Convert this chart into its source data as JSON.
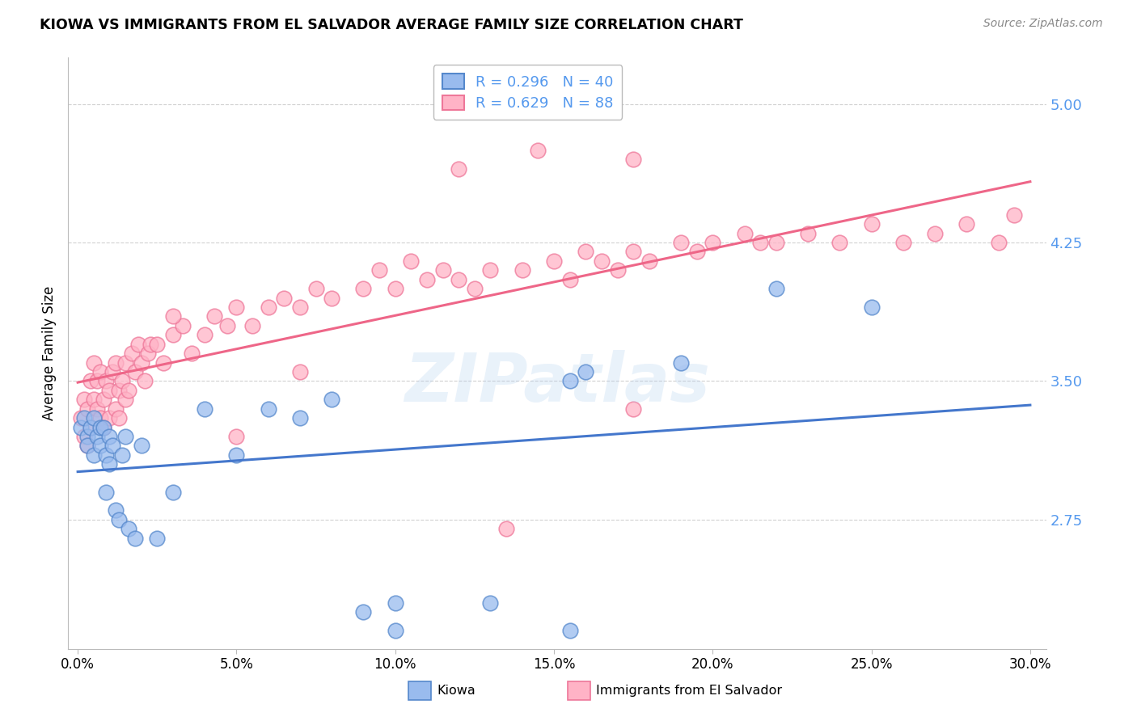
{
  "title": "KIOWA VS IMMIGRANTS FROM EL SALVADOR AVERAGE FAMILY SIZE CORRELATION CHART",
  "source": "Source: ZipAtlas.com",
  "ylabel": "Average Family Size",
  "legend_label_blue": "Kiowa",
  "legend_label_pink": "Immigrants from El Salvador",
  "legend_r_blue": "R = 0.296",
  "legend_n_blue": "N = 40",
  "legend_r_pink": "R = 0.629",
  "legend_n_pink": "N = 88",
  "xlim": [
    -0.003,
    0.305
  ],
  "ylim": [
    2.05,
    5.25
  ],
  "yticks": [
    2.75,
    3.5,
    4.25,
    5.0
  ],
  "xticks": [
    0.0,
    0.05,
    0.1,
    0.15,
    0.2,
    0.25,
    0.3
  ],
  "xtick_labels": [
    "0.0%",
    "5.0%",
    "10.0%",
    "15.0%",
    "20.0%",
    "25.0%",
    "30.0%"
  ],
  "color_blue_fill": "#99BBEE",
  "color_pink_fill": "#FFB3C6",
  "color_blue_edge": "#5588CC",
  "color_pink_edge": "#EE7799",
  "color_blue_line": "#4477CC",
  "color_pink_line": "#EE6688",
  "color_ytick": "#5599EE",
  "background_color": "#FFFFFF",
  "blue_x": [
    0.001,
    0.002,
    0.003,
    0.003,
    0.004,
    0.005,
    0.005,
    0.006,
    0.007,
    0.007,
    0.008,
    0.009,
    0.009,
    0.01,
    0.01,
    0.011,
    0.012,
    0.013,
    0.014,
    0.015,
    0.016,
    0.018,
    0.02,
    0.025,
    0.03,
    0.04,
    0.05,
    0.06,
    0.07,
    0.08,
    0.09,
    0.1,
    0.13,
    0.155,
    0.16,
    0.19,
    0.22,
    0.25,
    0.1,
    0.155
  ],
  "blue_y": [
    3.25,
    3.3,
    3.2,
    3.15,
    3.25,
    3.3,
    3.1,
    3.2,
    3.25,
    3.15,
    3.25,
    3.1,
    2.9,
    3.2,
    3.05,
    3.15,
    2.8,
    2.75,
    3.1,
    3.2,
    2.7,
    2.65,
    3.15,
    2.65,
    2.9,
    3.35,
    3.1,
    3.35,
    3.3,
    3.4,
    2.25,
    2.3,
    2.3,
    3.5,
    3.55,
    3.6,
    4.0,
    3.9,
    2.15,
    2.15
  ],
  "pink_x": [
    0.001,
    0.002,
    0.002,
    0.003,
    0.003,
    0.004,
    0.004,
    0.005,
    0.005,
    0.006,
    0.006,
    0.007,
    0.007,
    0.008,
    0.008,
    0.009,
    0.01,
    0.01,
    0.011,
    0.012,
    0.012,
    0.013,
    0.013,
    0.014,
    0.015,
    0.015,
    0.016,
    0.017,
    0.018,
    0.019,
    0.02,
    0.021,
    0.022,
    0.023,
    0.025,
    0.027,
    0.03,
    0.033,
    0.036,
    0.04,
    0.043,
    0.047,
    0.05,
    0.055,
    0.06,
    0.065,
    0.07,
    0.075,
    0.08,
    0.09,
    0.095,
    0.1,
    0.105,
    0.11,
    0.115,
    0.12,
    0.125,
    0.13,
    0.14,
    0.15,
    0.155,
    0.16,
    0.165,
    0.17,
    0.175,
    0.18,
    0.19,
    0.195,
    0.2,
    0.21,
    0.215,
    0.22,
    0.23,
    0.24,
    0.25,
    0.26,
    0.27,
    0.28,
    0.29,
    0.295,
    0.12,
    0.145,
    0.175,
    0.07,
    0.03,
    0.05,
    0.135,
    0.175
  ],
  "pink_y": [
    3.3,
    3.4,
    3.2,
    3.35,
    3.15,
    3.5,
    3.25,
    3.4,
    3.6,
    3.35,
    3.5,
    3.55,
    3.3,
    3.4,
    3.25,
    3.5,
    3.45,
    3.3,
    3.55,
    3.35,
    3.6,
    3.3,
    3.45,
    3.5,
    3.4,
    3.6,
    3.45,
    3.65,
    3.55,
    3.7,
    3.6,
    3.5,
    3.65,
    3.7,
    3.7,
    3.6,
    3.75,
    3.8,
    3.65,
    3.75,
    3.85,
    3.8,
    3.9,
    3.8,
    3.9,
    3.95,
    3.9,
    4.0,
    3.95,
    4.0,
    4.1,
    4.0,
    4.15,
    4.05,
    4.1,
    4.05,
    4.0,
    4.1,
    4.1,
    4.15,
    4.05,
    4.2,
    4.15,
    4.1,
    4.2,
    4.15,
    4.25,
    4.2,
    4.25,
    4.3,
    4.25,
    4.25,
    4.3,
    4.25,
    4.35,
    4.25,
    4.3,
    4.35,
    4.25,
    4.4,
    4.65,
    4.75,
    4.7,
    3.55,
    3.85,
    3.2,
    2.7,
    3.35
  ]
}
